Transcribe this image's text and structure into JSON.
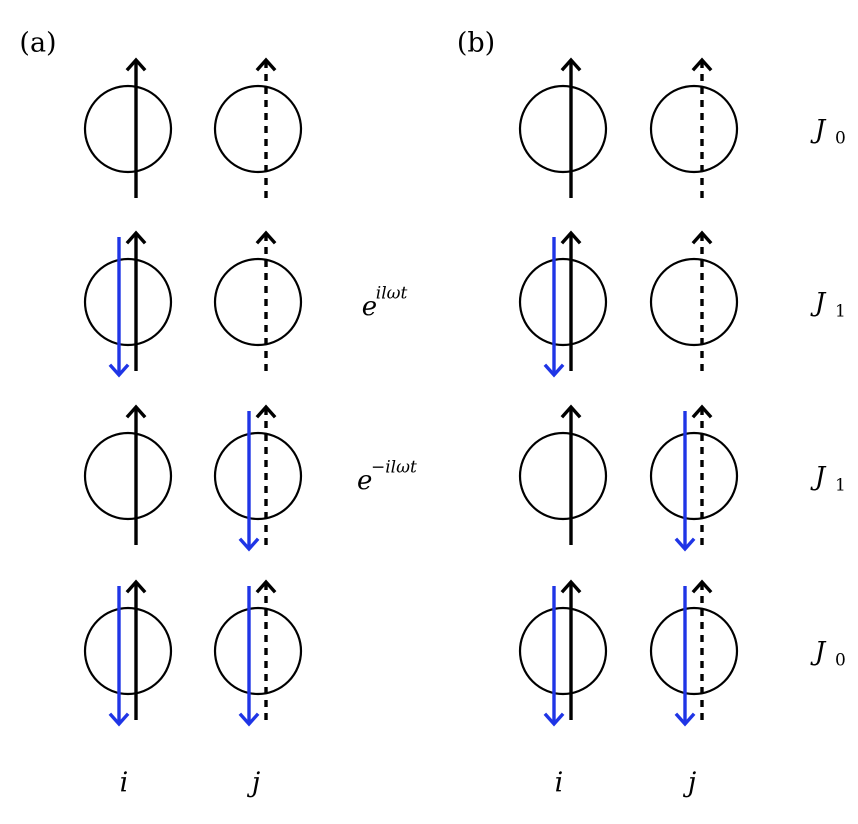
{
  "panels": {
    "a": {
      "label": "(a)",
      "rows": [
        {
          "site_i_flipped": false,
          "site_j_flipped": false,
          "factor_base": "",
          "factor_exp": ""
        },
        {
          "site_i_flipped": true,
          "site_j_flipped": false,
          "factor_base": "e",
          "factor_exp": "ilωt"
        },
        {
          "site_i_flipped": false,
          "site_j_flipped": true,
          "factor_base": "e",
          "factor_exp": "−ilωt"
        },
        {
          "site_i_flipped": true,
          "site_j_flipped": true,
          "factor_base": "",
          "factor_exp": ""
        }
      ],
      "site_labels": [
        "i",
        "j"
      ]
    },
    "b": {
      "label": "(b)",
      "rows": [
        {
          "site_i_flipped": false,
          "site_j_flipped": false,
          "coupling_base": "J",
          "coupling_sub": "0"
        },
        {
          "site_i_flipped": true,
          "site_j_flipped": false,
          "coupling_base": "J",
          "coupling_sub": "1"
        },
        {
          "site_i_flipped": false,
          "site_j_flipped": true,
          "coupling_base": "J",
          "coupling_sub": "1"
        },
        {
          "site_i_flipped": true,
          "site_j_flipped": true,
          "coupling_base": "J",
          "coupling_sub": "0"
        }
      ],
      "site_labels": [
        "i",
        "j"
      ]
    }
  },
  "colors": {
    "spin_up": "#000000",
    "spin_flipped": "#1f35e6",
    "circle": "#000000"
  }
}
